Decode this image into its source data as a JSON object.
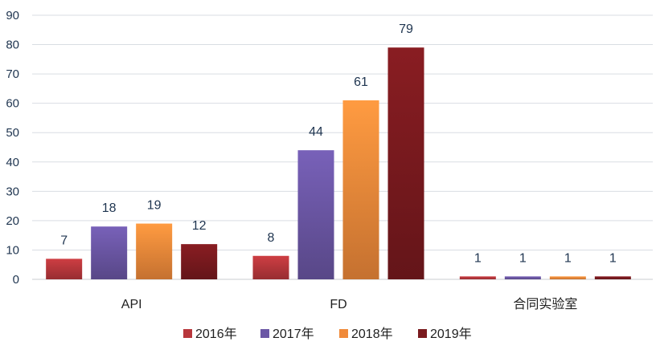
{
  "chart_data": {
    "type": "bar",
    "categories": [
      "API",
      "FD",
      "合同实验室"
    ],
    "series": [
      {
        "name": "2016年",
        "values": [
          7,
          8,
          1
        ],
        "color": "#b8373c"
      },
      {
        "name": "2017年",
        "values": [
          18,
          44,
          1
        ],
        "color": "#6b57a5"
      },
      {
        "name": "2018年",
        "values": [
          19,
          61,
          1
        ],
        "color": "#f08a3a"
      },
      {
        "name": "2019年",
        "values": [
          12,
          79,
          1
        ],
        "color": "#7a1a1e"
      }
    ],
    "yticks": [
      "0",
      "10",
      "20",
      "30",
      "40",
      "50",
      "60",
      "70",
      "80",
      "90"
    ],
    "ylim": [
      0,
      90
    ],
    "grid": true,
    "legend_position": "bottom",
    "data_labels": true
  }
}
